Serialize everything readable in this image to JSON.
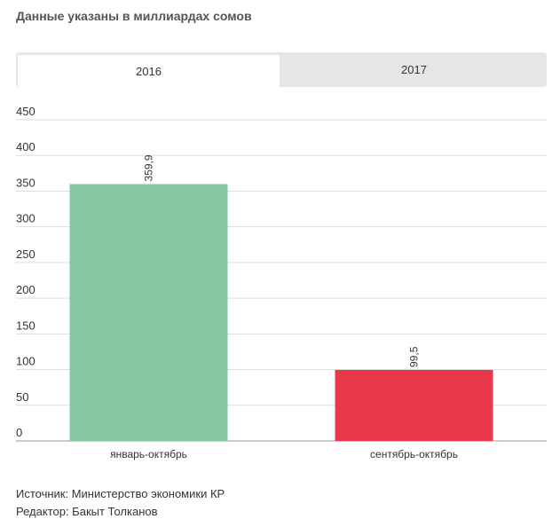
{
  "header": {
    "subtitle": "Данные указаны в миллиардах сомов"
  },
  "tabs": [
    {
      "label": "2016",
      "active": true
    },
    {
      "label": "2017",
      "active": false
    }
  ],
  "chart_data": {
    "type": "bar",
    "categories": [
      "январь-октябрь",
      "сентябрь-октябрь"
    ],
    "values": [
      359.9,
      99.5
    ],
    "value_labels": [
      "359,9",
      "99,5"
    ],
    "colors": [
      "#86c9a0",
      "#e8394a"
    ],
    "ylim": [
      0,
      450
    ],
    "yticks": [
      "0",
      "50",
      "100",
      "150",
      "200",
      "250",
      "300",
      "350",
      "400",
      "450"
    ],
    "grid": true,
    "title": "",
    "xlabel": "",
    "ylabel": ""
  },
  "footer": {
    "source": "Источник: Министерство экономики КР",
    "editor": "Редактор: Бакыт Толканов"
  }
}
